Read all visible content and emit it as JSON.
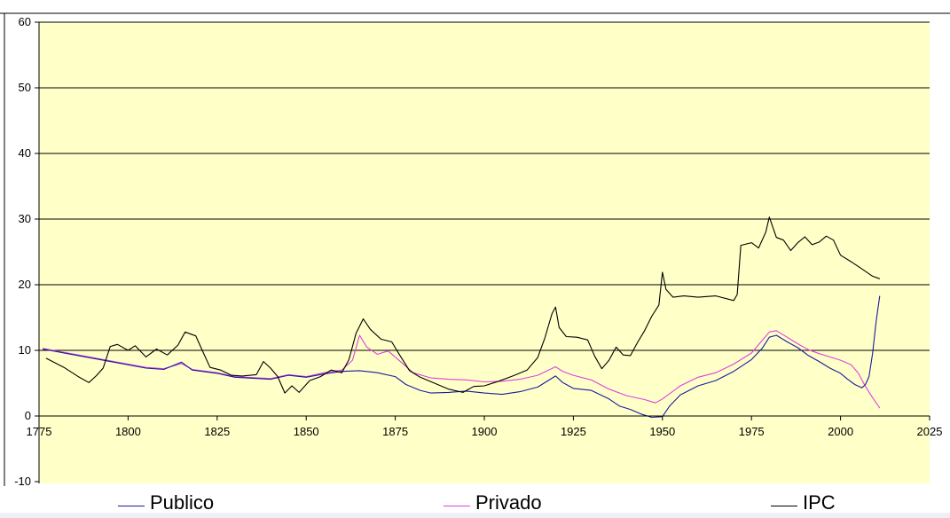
{
  "chart_data": {
    "type": "line",
    "title": "",
    "xlabel": "",
    "ylabel": "",
    "xlim": [
      1775,
      2025
    ],
    "ylim": [
      -10,
      60
    ],
    "x_ticks": [
      "1775",
      "1800",
      "1825",
      "1850",
      "1875",
      "1900",
      "1925",
      "1950",
      "1975",
      "2000",
      "2025"
    ],
    "y_ticks": [
      "60",
      "50",
      "40",
      "30",
      "20",
      "10",
      "0",
      "-10"
    ],
    "grid": "horizontal",
    "plot_background": "#ffffc8",
    "legend_position": "bottom",
    "series": [
      {
        "name": "Publico",
        "color": "#1a1aa0",
        "points": [
          [
            1776,
            10.2
          ],
          [
            1785,
            9.3
          ],
          [
            1795,
            8.3
          ],
          [
            1805,
            7.3
          ],
          [
            1810,
            7.1
          ],
          [
            1815,
            8.2
          ],
          [
            1818,
            7.0
          ],
          [
            1825,
            6.5
          ],
          [
            1830,
            5.9
          ],
          [
            1840,
            5.6
          ],
          [
            1845,
            6.2
          ],
          [
            1850,
            5.9
          ],
          [
            1855,
            6.4
          ],
          [
            1860,
            6.8
          ],
          [
            1865,
            6.9
          ],
          [
            1870,
            6.6
          ],
          [
            1875,
            6.0
          ],
          [
            1878,
            4.8
          ],
          [
            1882,
            3.9
          ],
          [
            1885,
            3.5
          ],
          [
            1890,
            3.6
          ],
          [
            1895,
            3.8
          ],
          [
            1900,
            3.5
          ],
          [
            1905,
            3.3
          ],
          [
            1910,
            3.7
          ],
          [
            1915,
            4.4
          ],
          [
            1920,
            6.1
          ],
          [
            1922,
            5.1
          ],
          [
            1925,
            4.2
          ],
          [
            1930,
            3.9
          ],
          [
            1935,
            2.6
          ],
          [
            1938,
            1.5
          ],
          [
            1941,
            1.0
          ],
          [
            1944,
            0.3
          ],
          [
            1947,
            -0.2
          ],
          [
            1950,
            -0.1
          ],
          [
            1952,
            1.5
          ],
          [
            1955,
            3.2
          ],
          [
            1960,
            4.6
          ],
          [
            1965,
            5.4
          ],
          [
            1970,
            6.8
          ],
          [
            1975,
            8.6
          ],
          [
            1978,
            10.3
          ],
          [
            1980,
            12.0
          ],
          [
            1982,
            12.3
          ],
          [
            1985,
            11.3
          ],
          [
            1988,
            10.4
          ],
          [
            1991,
            9.2
          ],
          [
            1994,
            8.3
          ],
          [
            1997,
            7.3
          ],
          [
            2000,
            6.5
          ],
          [
            2002,
            5.6
          ],
          [
            2004,
            4.8
          ],
          [
            2006,
            4.3
          ],
          [
            2007,
            4.8
          ],
          [
            2008,
            6.0
          ],
          [
            2009,
            9.5
          ],
          [
            2010,
            14.5
          ],
          [
            2011,
            18.3
          ]
        ]
      },
      {
        "name": "Privado",
        "color": "#e040e0",
        "points": [
          [
            1776,
            10.3
          ],
          [
            1785,
            9.4
          ],
          [
            1795,
            8.4
          ],
          [
            1805,
            7.4
          ],
          [
            1810,
            7.2
          ],
          [
            1815,
            8.0
          ],
          [
            1818,
            7.1
          ],
          [
            1825,
            6.6
          ],
          [
            1830,
            6.0
          ],
          [
            1840,
            5.7
          ],
          [
            1845,
            6.3
          ],
          [
            1850,
            6.0
          ],
          [
            1855,
            6.6
          ],
          [
            1860,
            7.0
          ],
          [
            1863,
            8.5
          ],
          [
            1865,
            12.3
          ],
          [
            1867,
            10.5
          ],
          [
            1870,
            9.4
          ],
          [
            1873,
            9.9
          ],
          [
            1876,
            8.5
          ],
          [
            1880,
            6.6
          ],
          [
            1885,
            5.8
          ],
          [
            1890,
            5.6
          ],
          [
            1895,
            5.5
          ],
          [
            1900,
            5.2
          ],
          [
            1905,
            5.3
          ],
          [
            1910,
            5.6
          ],
          [
            1915,
            6.2
          ],
          [
            1920,
            7.5
          ],
          [
            1922,
            6.8
          ],
          [
            1925,
            6.2
          ],
          [
            1930,
            5.5
          ],
          [
            1935,
            4.1
          ],
          [
            1940,
            3.1
          ],
          [
            1945,
            2.5
          ],
          [
            1948,
            2.0
          ],
          [
            1950,
            2.6
          ],
          [
            1955,
            4.6
          ],
          [
            1960,
            5.9
          ],
          [
            1965,
            6.6
          ],
          [
            1970,
            7.9
          ],
          [
            1975,
            9.6
          ],
          [
            1978,
            11.5
          ],
          [
            1980,
            12.8
          ],
          [
            1982,
            13.0
          ],
          [
            1985,
            12.0
          ],
          [
            1988,
            11.0
          ],
          [
            1991,
            10.1
          ],
          [
            1994,
            9.5
          ],
          [
            1997,
            9.0
          ],
          [
            2000,
            8.5
          ],
          [
            2003,
            7.8
          ],
          [
            2005,
            6.5
          ],
          [
            2007,
            4.5
          ],
          [
            2009,
            2.8
          ],
          [
            2011,
            1.2
          ]
        ]
      },
      {
        "name": "IPC",
        "color": "#000000",
        "points": [
          [
            1777,
            8.8
          ],
          [
            1782,
            7.4
          ],
          [
            1786,
            6.0
          ],
          [
            1789,
            5.1
          ],
          [
            1791,
            6.1
          ],
          [
            1793,
            7.3
          ],
          [
            1795,
            10.6
          ],
          [
            1797,
            10.9
          ],
          [
            1800,
            10.0
          ],
          [
            1802,
            10.7
          ],
          [
            1805,
            9.0
          ],
          [
            1808,
            10.2
          ],
          [
            1811,
            9.3
          ],
          [
            1814,
            10.8
          ],
          [
            1816,
            12.8
          ],
          [
            1819,
            12.2
          ],
          [
            1821,
            9.8
          ],
          [
            1823,
            7.4
          ],
          [
            1826,
            7.0
          ],
          [
            1829,
            6.2
          ],
          [
            1832,
            6.1
          ],
          [
            1836,
            6.3
          ],
          [
            1838,
            8.3
          ],
          [
            1840,
            7.3
          ],
          [
            1842,
            6.0
          ],
          [
            1844,
            3.5
          ],
          [
            1846,
            4.6
          ],
          [
            1848,
            3.6
          ],
          [
            1851,
            5.4
          ],
          [
            1854,
            6.0
          ],
          [
            1857,
            7.0
          ],
          [
            1860,
            6.6
          ],
          [
            1862,
            8.6
          ],
          [
            1864,
            12.6
          ],
          [
            1866,
            14.8
          ],
          [
            1868,
            13.2
          ],
          [
            1871,
            11.7
          ],
          [
            1874,
            11.3
          ],
          [
            1876,
            9.5
          ],
          [
            1879,
            6.9
          ],
          [
            1882,
            5.9
          ],
          [
            1886,
            5.0
          ],
          [
            1890,
            4.1
          ],
          [
            1894,
            3.6
          ],
          [
            1897,
            4.5
          ],
          [
            1900,
            4.6
          ],
          [
            1904,
            5.3
          ],
          [
            1908,
            6.1
          ],
          [
            1912,
            7.0
          ],
          [
            1915,
            8.9
          ],
          [
            1917,
            11.9
          ],
          [
            1919,
            15.6
          ],
          [
            1920,
            16.6
          ],
          [
            1921,
            13.5
          ],
          [
            1923,
            12.1
          ],
          [
            1926,
            12.0
          ],
          [
            1929,
            11.6
          ],
          [
            1931,
            9.1
          ],
          [
            1933,
            7.2
          ],
          [
            1935,
            8.5
          ],
          [
            1937,
            10.5
          ],
          [
            1939,
            9.3
          ],
          [
            1941,
            9.2
          ],
          [
            1943,
            11.2
          ],
          [
            1945,
            13.0
          ],
          [
            1947,
            15.2
          ],
          [
            1949,
            16.9
          ],
          [
            1950,
            21.9
          ],
          [
            1951,
            19.3
          ],
          [
            1953,
            18.1
          ],
          [
            1956,
            18.3
          ],
          [
            1960,
            18.1
          ],
          [
            1965,
            18.3
          ],
          [
            1970,
            17.6
          ],
          [
            1971,
            18.5
          ],
          [
            1972,
            26.0
          ],
          [
            1975,
            26.4
          ],
          [
            1977,
            25.6
          ],
          [
            1979,
            28.0
          ],
          [
            1980,
            30.3
          ],
          [
            1982,
            27.2
          ],
          [
            1984,
            26.8
          ],
          [
            1986,
            25.2
          ],
          [
            1988,
            26.4
          ],
          [
            1990,
            27.3
          ],
          [
            1992,
            26.1
          ],
          [
            1994,
            26.5
          ],
          [
            1996,
            27.4
          ],
          [
            1998,
            26.8
          ],
          [
            2000,
            24.5
          ],
          [
            2003,
            23.5
          ],
          [
            2006,
            22.4
          ],
          [
            2009,
            21.3
          ],
          [
            2011,
            20.9
          ]
        ]
      }
    ]
  }
}
